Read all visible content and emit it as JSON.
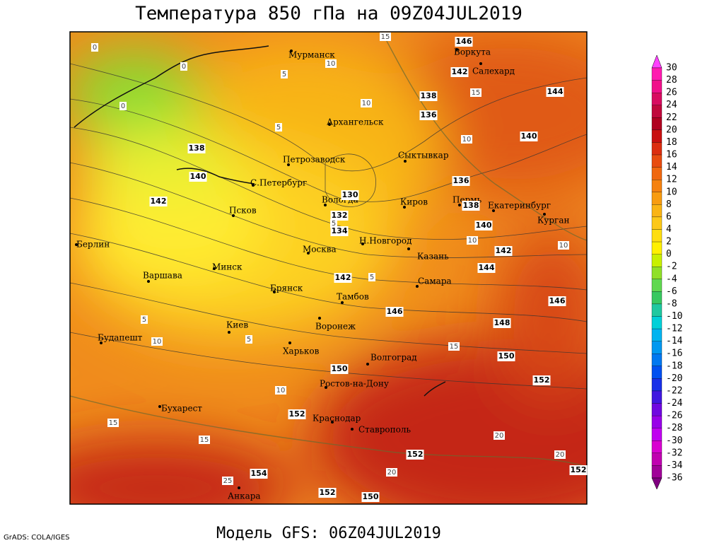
{
  "title": "Температура 850 гПа на 09Z04JUL2019",
  "footer": "Модель GFS: 06Z04JUL2019",
  "credit": "GrADS: COLA/IGES",
  "cities": [
    "Мурманск",
    "Воркута",
    "Салехард",
    "Архангельск",
    "Сыктывкар",
    "Петрозаводск",
    "С.Петербург",
    "Вологда",
    "Киров",
    "Пермь",
    "Екатеринбург",
    "Курган",
    "Псков",
    "Н.Новгород",
    "Казань",
    "Берлин",
    "Москва",
    "Минск",
    "Варшава",
    "Самара",
    "Брянск",
    "Тамбов",
    "Киев",
    "Воронеж",
    "Будапешт",
    "Харьков",
    "Волгоград",
    "Ростов-на-Дону",
    "Бухарест",
    "Краснодар",
    "Ставрополь",
    "Анкара"
  ],
  "height_labels": [
    "138",
    "140",
    "142",
    "130",
    "132",
    "134",
    "142",
    "146",
    "148",
    "150",
    "150",
    "152",
    "152",
    "152",
    "154",
    "152",
    "150",
    "146",
    "142",
    "138",
    "136",
    "136",
    "138",
    "140",
    "142",
    "144",
    "146",
    "144",
    "140",
    "152"
  ],
  "temp_labels": [
    "0",
    "0",
    "0",
    "5",
    "10",
    "10",
    "15",
    "10",
    "5",
    "5",
    "5",
    "10",
    "10",
    "5",
    "10",
    "5",
    "10",
    "15",
    "15",
    "15",
    "20",
    "20",
    "20",
    "15",
    "25"
  ],
  "colorbar": {
    "labels": [
      30,
      28,
      26,
      24,
      22,
      20,
      18,
      16,
      14,
      12,
      10,
      8,
      6,
      4,
      2,
      0,
      -2,
      -4,
      -6,
      -8,
      -10,
      -12,
      -14,
      -16,
      -18,
      -20,
      -22,
      -24,
      -26,
      -28,
      -30,
      -32,
      -34,
      -36
    ],
    "colors": [
      "#ff40ff",
      "#ff1ab0",
      "#f0108a",
      "#d80c60",
      "#c0083c",
      "#b00020",
      "#c81010",
      "#dc2e10",
      "#e84c10",
      "#f06810",
      "#f58210",
      "#f89c10",
      "#fab414",
      "#fcc818",
      "#fede10",
      "#fff000",
      "#c8f000",
      "#90e028",
      "#60d850",
      "#38c860",
      "#20c8a0",
      "#00d0d8",
      "#00b4f0",
      "#0098f0",
      "#0078f0",
      "#0050f0",
      "#1830e8",
      "#4018e0",
      "#7008e0",
      "#9800e8",
      "#c000f0",
      "#d800d0",
      "#c000b0",
      "#a00098",
      "#800080"
    ]
  }
}
